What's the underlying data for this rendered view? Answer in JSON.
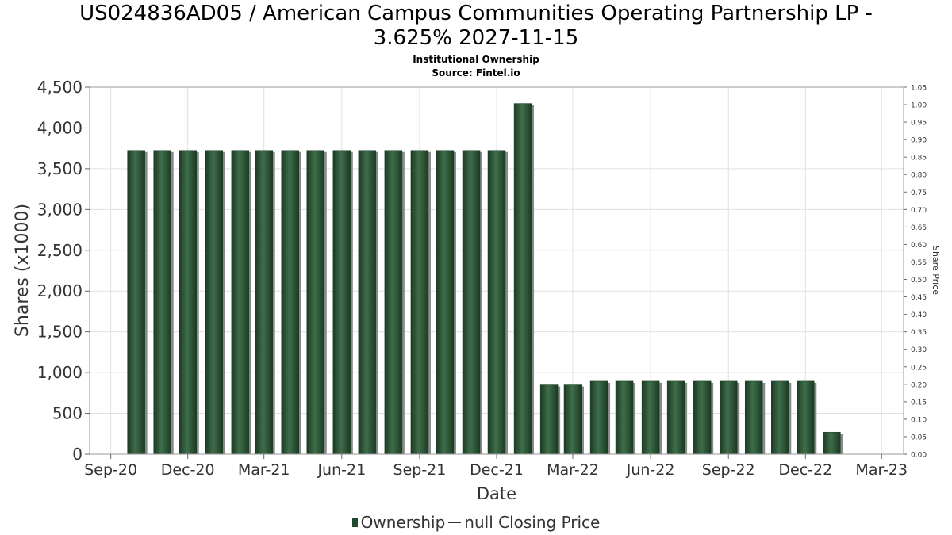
{
  "header": {
    "title_line1": "US024836AD05 / American Campus Communities Operating Partnership LP -",
    "title_line2": "3.625% 2027-11-15",
    "subtitle": "Institutional Ownership",
    "source": "Source: Fintel.io"
  },
  "legend": {
    "ownership_label": "Ownership",
    "price_label": "null Closing Price"
  },
  "colors": {
    "bar_dark": "#1c3f26",
    "bar_light": "#3d6b47",
    "bar_shadow": "#8a8a8a",
    "grid": "#e0e0e0"
  },
  "chart_data": {
    "type": "bar",
    "xlabel": "Date",
    "ylabel": "Shares (x1000)",
    "y2label": "Share Price",
    "ylim": [
      0,
      4500
    ],
    "y2lim": [
      0,
      1.05
    ],
    "grid": true,
    "legend_position": "bottom",
    "yticks": [
      {
        "value": 0,
        "label": "0"
      },
      {
        "value": 500,
        "label": "500"
      },
      {
        "value": 1000,
        "label": "1,000"
      },
      {
        "value": 1500,
        "label": "1,500"
      },
      {
        "value": 2000,
        "label": "2,000"
      },
      {
        "value": 2500,
        "label": "2,500"
      },
      {
        "value": 3000,
        "label": "3,000"
      },
      {
        "value": 3500,
        "label": "3,500"
      },
      {
        "value": 4000,
        "label": "4,000"
      },
      {
        "value": 4500,
        "label": "4,500"
      }
    ],
    "y2ticks": [
      "0.00",
      "0.05",
      "0.10",
      "0.15",
      "0.20",
      "0.25",
      "0.30",
      "0.35",
      "0.40",
      "0.45",
      "0.50",
      "0.55",
      "0.60",
      "0.65",
      "0.70",
      "0.75",
      "0.80",
      "0.85",
      "0.90",
      "0.95",
      "1.00",
      "1.05"
    ],
    "xlim": [
      "2020-08-07",
      "2023-03-27"
    ],
    "xticks": [
      {
        "date": "2020-09-01",
        "label": "Sep-20"
      },
      {
        "date": "2020-12-01",
        "label": "Dec-20"
      },
      {
        "date": "2021-03-01",
        "label": "Mar-21"
      },
      {
        "date": "2021-06-01",
        "label": "Jun-21"
      },
      {
        "date": "2021-09-01",
        "label": "Sep-21"
      },
      {
        "date": "2021-12-01",
        "label": "Dec-21"
      },
      {
        "date": "2022-03-01",
        "label": "Mar-22"
      },
      {
        "date": "2022-06-01",
        "label": "Jun-22"
      },
      {
        "date": "2022-09-01",
        "label": "Sep-22"
      },
      {
        "date": "2022-12-01",
        "label": "Dec-22"
      },
      {
        "date": "2023-03-01",
        "label": "Mar-23"
      }
    ],
    "series": [
      {
        "name": "Ownership",
        "points": [
          {
            "date": "2020-10-01",
            "value": 3725
          },
          {
            "date": "2020-11-01",
            "value": 3725
          },
          {
            "date": "2020-12-01",
            "value": 3725
          },
          {
            "date": "2021-01-01",
            "value": 3725
          },
          {
            "date": "2021-02-01",
            "value": 3725
          },
          {
            "date": "2021-03-01",
            "value": 3725
          },
          {
            "date": "2021-04-01",
            "value": 3725
          },
          {
            "date": "2021-05-01",
            "value": 3725
          },
          {
            "date": "2021-06-01",
            "value": 3725
          },
          {
            "date": "2021-07-01",
            "value": 3725
          },
          {
            "date": "2021-08-01",
            "value": 3725
          },
          {
            "date": "2021-09-01",
            "value": 3725
          },
          {
            "date": "2021-10-01",
            "value": 3725
          },
          {
            "date": "2021-11-01",
            "value": 3725
          },
          {
            "date": "2021-12-01",
            "value": 3725
          },
          {
            "date": "2022-01-01",
            "value": 4300
          },
          {
            "date": "2022-02-01",
            "value": 850
          },
          {
            "date": "2022-03-01",
            "value": 850
          },
          {
            "date": "2022-04-01",
            "value": 895
          },
          {
            "date": "2022-05-01",
            "value": 895
          },
          {
            "date": "2022-06-01",
            "value": 895
          },
          {
            "date": "2022-07-01",
            "value": 895
          },
          {
            "date": "2022-08-01",
            "value": 895
          },
          {
            "date": "2022-09-01",
            "value": 895
          },
          {
            "date": "2022-10-01",
            "value": 895
          },
          {
            "date": "2022-11-01",
            "value": 895
          },
          {
            "date": "2022-12-01",
            "value": 895
          },
          {
            "date": "2023-01-01",
            "value": 270
          }
        ]
      }
    ]
  }
}
